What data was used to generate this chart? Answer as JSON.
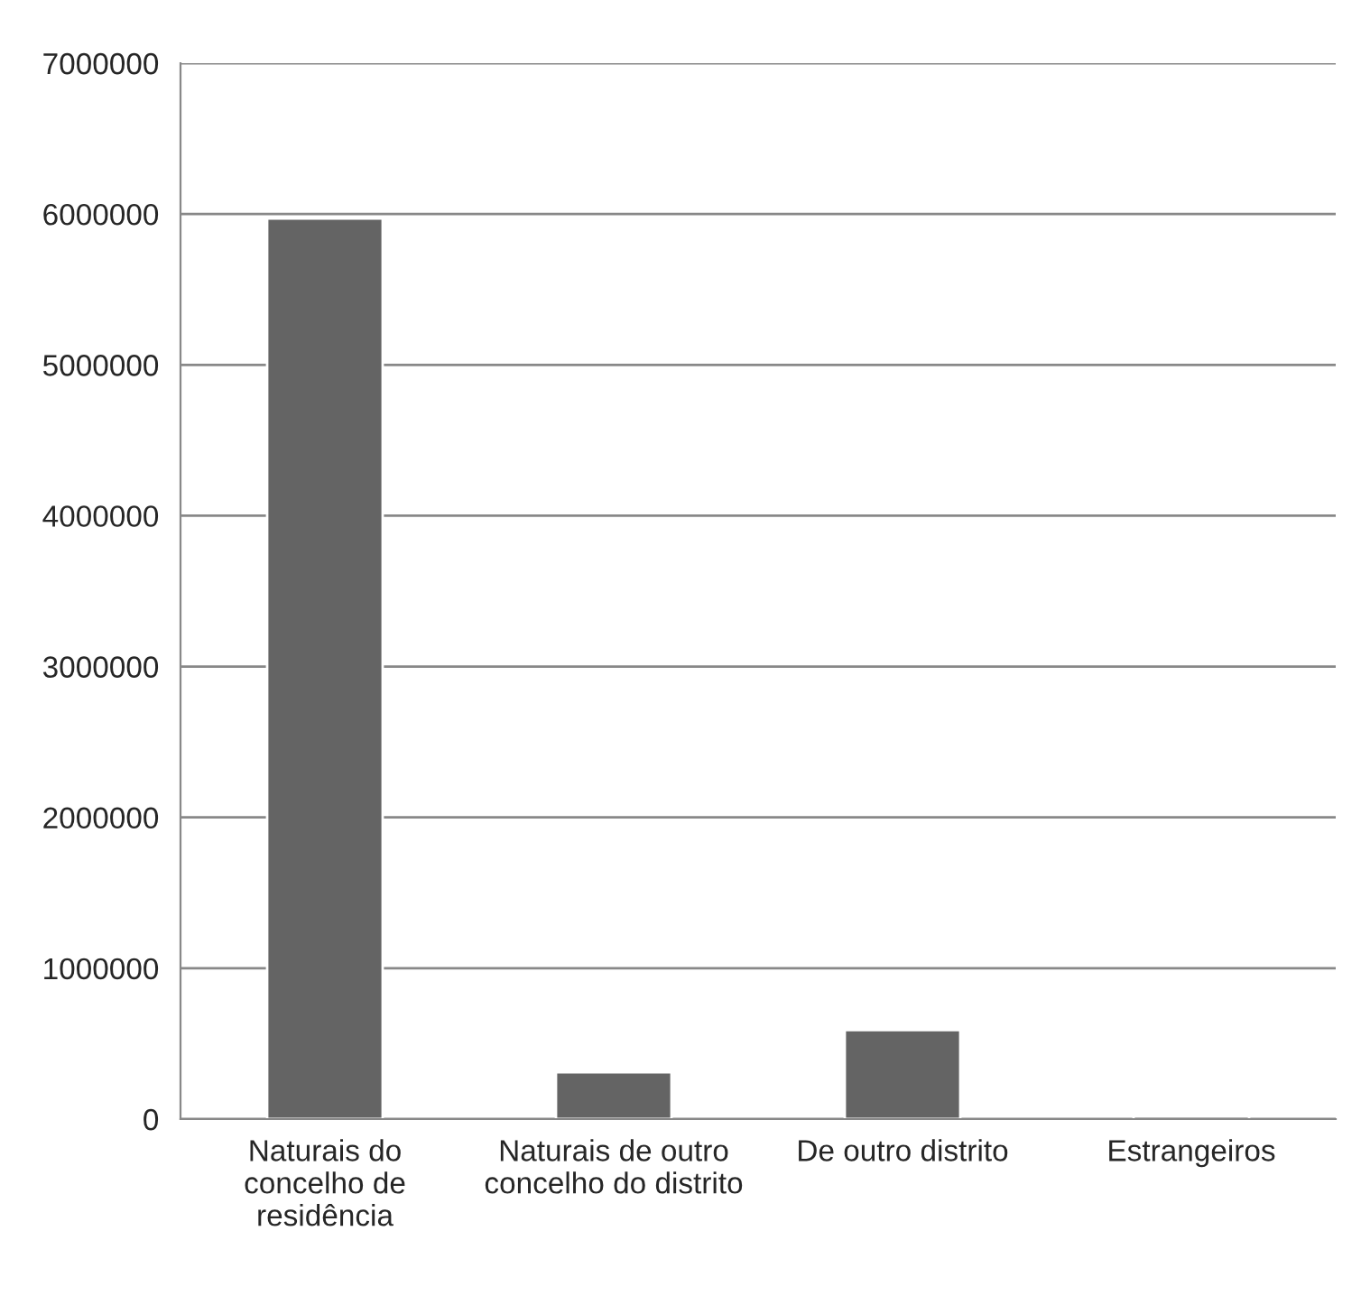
{
  "chart_data": {
    "type": "bar",
    "categories": [
      "Naturais do\nconcelho de\nresidência",
      "Naturais de outro\nconcelho do distrito",
      "De outro distrito",
      "Estrangeiros"
    ],
    "values": [
      5970000,
      310000,
      590000,
      20000
    ],
    "color": "#646464",
    "ylim": [
      0,
      7000000
    ],
    "yticks": [
      0,
      1000000,
      2000000,
      3000000,
      4000000,
      5000000,
      6000000,
      7000000
    ],
    "grid": "y",
    "legend": false
  }
}
